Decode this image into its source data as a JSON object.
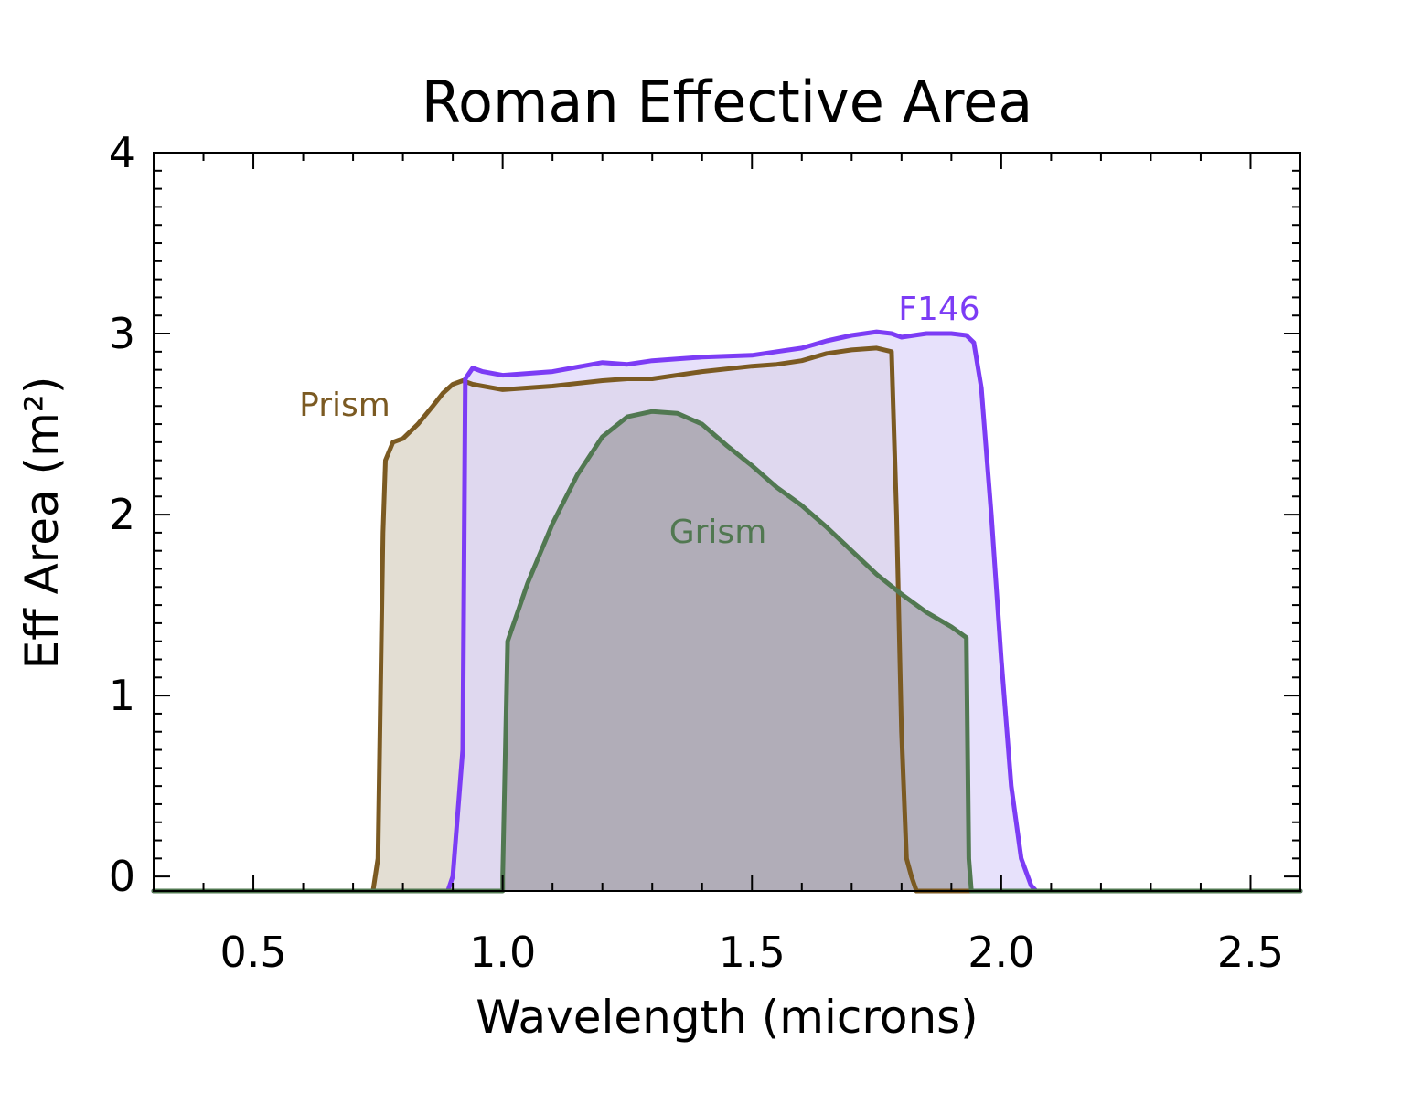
{
  "chart_data": {
    "type": "area",
    "title": "Roman Effective Area",
    "xlabel": "Wavelength (microns)",
    "ylabel": "Eff Area (m²)",
    "xlim": [
      0.3,
      2.6
    ],
    "ylim": [
      -0.08,
      4.0
    ],
    "xticks": [
      0.5,
      1.0,
      1.5,
      2.0,
      2.5
    ],
    "xtick_labels": [
      "0.5",
      "1.0",
      "1.5",
      "2.0",
      "2.5"
    ],
    "yticks": [
      0,
      1,
      2,
      3,
      4
    ],
    "ytick_labels": [
      "0",
      "1",
      "2",
      "3",
      "4"
    ],
    "grid": false,
    "series": [
      {
        "name": "Prism",
        "line_color": "#7b5a22",
        "fill_color": "#e3ded3",
        "x": [
          0.3,
          0.74,
          0.75,
          0.76,
          0.765,
          0.78,
          0.8,
          0.83,
          0.86,
          0.88,
          0.9,
          0.92,
          0.94,
          1.0,
          1.1,
          1.2,
          1.25,
          1.3,
          1.4,
          1.5,
          1.55,
          1.6,
          1.65,
          1.7,
          1.75,
          1.78,
          1.79,
          1.8,
          1.81,
          1.82,
          1.83,
          2.6
        ],
        "y": [
          -0.08,
          -0.08,
          0.1,
          1.9,
          2.3,
          2.4,
          2.42,
          2.5,
          2.6,
          2.67,
          2.72,
          2.74,
          2.72,
          2.69,
          2.71,
          2.74,
          2.75,
          2.75,
          2.79,
          2.82,
          2.83,
          2.85,
          2.89,
          2.91,
          2.92,
          2.9,
          2.0,
          0.8,
          0.1,
          0.0,
          -0.08,
          -0.08
        ]
      },
      {
        "name": "F146",
        "line_color": "#7c3cf5",
        "fill_color": "#ded5f9",
        "x": [
          0.3,
          0.89,
          0.9,
          0.92,
          0.925,
          0.94,
          0.96,
          1.0,
          1.1,
          1.2,
          1.25,
          1.3,
          1.35,
          1.4,
          1.5,
          1.55,
          1.6,
          1.65,
          1.7,
          1.75,
          1.78,
          1.8,
          1.85,
          1.9,
          1.93,
          1.945,
          1.96,
          1.98,
          2.0,
          2.02,
          2.04,
          2.06,
          2.07,
          2.6
        ],
        "y": [
          -0.08,
          -0.08,
          0.0,
          0.7,
          2.75,
          2.81,
          2.79,
          2.77,
          2.79,
          2.84,
          2.83,
          2.85,
          2.86,
          2.87,
          2.88,
          2.9,
          2.92,
          2.96,
          2.99,
          3.01,
          3.0,
          2.98,
          3.0,
          3.0,
          2.99,
          2.95,
          2.7,
          2.0,
          1.2,
          0.5,
          0.1,
          -0.05,
          -0.08,
          -0.08
        ]
      },
      {
        "name": "Grism",
        "line_color": "#517851",
        "fill_color": "#8a8a8a",
        "x": [
          0.3,
          1.0,
          1.0,
          1.01,
          1.05,
          1.1,
          1.15,
          1.2,
          1.25,
          1.3,
          1.35,
          1.4,
          1.45,
          1.5,
          1.55,
          1.6,
          1.65,
          1.7,
          1.75,
          1.8,
          1.85,
          1.9,
          1.93,
          1.935,
          1.94,
          2.6
        ],
        "y": [
          -0.08,
          -0.08,
          0.0,
          1.3,
          1.62,
          1.95,
          2.22,
          2.43,
          2.54,
          2.57,
          2.56,
          2.5,
          2.38,
          2.27,
          2.15,
          2.05,
          1.93,
          1.8,
          1.67,
          1.56,
          1.46,
          1.38,
          1.32,
          0.1,
          -0.08,
          -0.08
        ]
      }
    ]
  }
}
